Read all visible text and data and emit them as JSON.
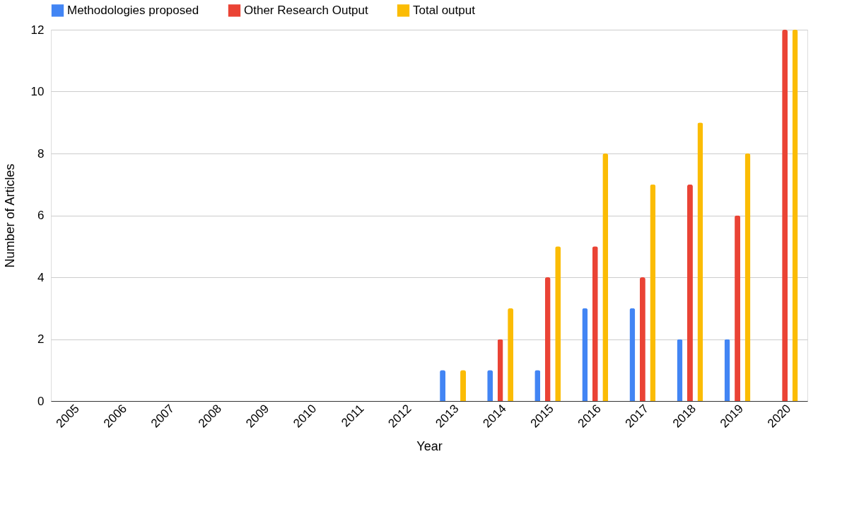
{
  "chart_data": {
    "type": "bar",
    "xlabel": "Year",
    "ylabel": "Number of Articles",
    "categories": [
      "2005",
      "2006",
      "2007",
      "2008",
      "2009",
      "2010",
      "2011",
      "2012",
      "2013",
      "2014",
      "2015",
      "2016",
      "2017",
      "2018",
      "2019",
      "2020"
    ],
    "series": [
      {
        "name": "Methodologies proposed",
        "color": "#4285f4",
        "values": [
          0,
          0,
          0,
          0,
          0,
          0,
          0,
          0,
          1,
          1,
          1,
          3,
          3,
          2,
          2,
          0
        ]
      },
      {
        "name": "Other Research Output",
        "color": "#ea4335",
        "values": [
          0,
          0,
          0,
          0,
          0,
          0,
          0,
          0,
          0,
          2,
          4,
          5,
          4,
          7,
          6,
          12
        ]
      },
      {
        "name": "Total output",
        "color": "#fbbc04",
        "values": [
          0,
          0,
          0,
          0,
          0,
          0,
          0,
          0,
          1,
          3,
          5,
          8,
          7,
          9,
          8,
          12
        ]
      }
    ],
    "ylim": [
      0,
      12
    ],
    "yticks": [
      0,
      2,
      4,
      6,
      8,
      10,
      12
    ],
    "grid": "y",
    "legend": "top"
  }
}
